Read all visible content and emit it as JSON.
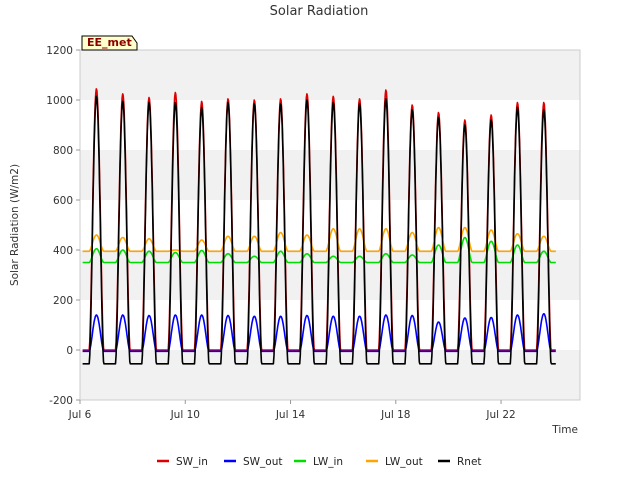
{
  "chart_data": {
    "type": "line",
    "title": "Solar Radiation",
    "xlabel": "Time",
    "ylabel": "Solar Radiation (W/m2)",
    "badge": "EE_met",
    "ylim": [
      -200,
      1200
    ],
    "yticks": [
      -200,
      0,
      200,
      400,
      600,
      800,
      1000,
      1200
    ],
    "xlim_day": [
      6,
      25
    ],
    "xticks": [
      {
        "day": 6,
        "label": "Jul 6"
      },
      {
        "day": 10,
        "label": "Jul 10"
      },
      {
        "day": 14,
        "label": "Jul 14"
      },
      {
        "day": 18,
        "label": "Jul 18"
      },
      {
        "day": 22,
        "label": "Jul 22"
      }
    ],
    "x_range": [
      "Jul 6",
      "Jul 24"
    ],
    "background_bands": true,
    "grid": false,
    "legend_position": "bottom",
    "days": [
      "Jul 6",
      "Jul 7",
      "Jul 8",
      "Jul 9",
      "Jul 10",
      "Jul 11",
      "Jul 12",
      "Jul 13",
      "Jul 14",
      "Jul 15",
      "Jul 16",
      "Jul 17",
      "Jul 18",
      "Jul 19",
      "Jul 20",
      "Jul 21",
      "Jul 22",
      "Jul 23"
    ],
    "series": [
      {
        "name": "SW_in",
        "color": "#dd0000",
        "daily_peak": [
          1045,
          1025,
          1010,
          1030,
          995,
          1005,
          1000,
          1005,
          1025,
          1015,
          1005,
          1040,
          980,
          950,
          920,
          940,
          990,
          990
        ],
        "night": 0
      },
      {
        "name": "SW_out",
        "color": "#0000ff",
        "daily_peak": [
          140,
          140,
          138,
          140,
          140,
          138,
          135,
          135,
          138,
          135,
          135,
          140,
          138,
          112,
          128,
          130,
          140,
          145
        ],
        "night": -5
      },
      {
        "name": "LW_in",
        "color": "#00dd00",
        "daily_peak": [
          405,
          400,
          395,
          390,
          398,
          385,
          375,
          395,
          385,
          375,
          375,
          385,
          380,
          420,
          450,
          435,
          420,
          395
        ],
        "night": 350
      },
      {
        "name": "LW_out",
        "color": "#ffa500",
        "daily_peak": [
          460,
          450,
          445,
          400,
          440,
          455,
          455,
          470,
          460,
          485,
          485,
          485,
          470,
          490,
          490,
          480,
          465,
          455
        ],
        "night": 395
      },
      {
        "name": "Rnet",
        "color": "#000000",
        "daily_peak": [
          1015,
          995,
          990,
          990,
          970,
          990,
          985,
          985,
          1000,
          990,
          985,
          1005,
          960,
          930,
          900,
          920,
          970,
          960
        ],
        "night": -55
      }
    ]
  }
}
